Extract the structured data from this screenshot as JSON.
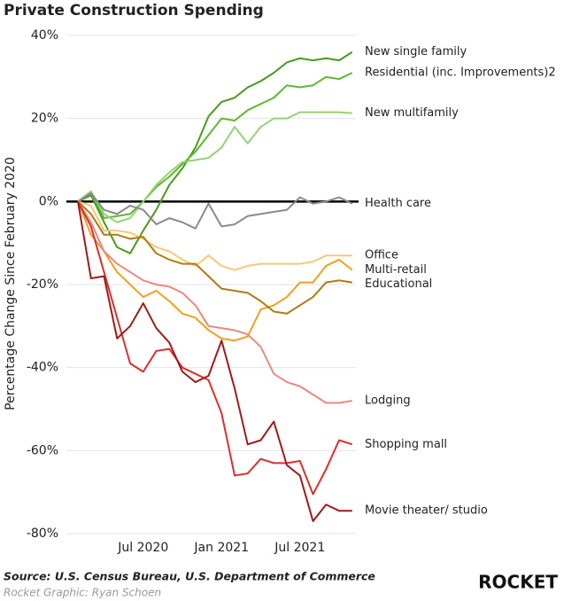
{
  "chart_data": {
    "type": "line",
    "title": "Private Construction Spending",
    "y_label": "Percentage Change Since February 2020",
    "source": "Source: U.S. Census Bureau, U.S. Department of Commerce",
    "credit": "Rocket Graphic: Ryan Schoen",
    "logo": "ROCKET",
    "categories": [
      null,
      null,
      null,
      null,
      null,
      "Jul 2020",
      null,
      null,
      null,
      null,
      null,
      "Jan 2021",
      null,
      null,
      null,
      null,
      null,
      "Jul 2021",
      null,
      null,
      null,
      null
    ],
    "ylim": [
      -80,
      40
    ],
    "yticks": [
      {
        "value": -80,
        "label": "-80%"
      },
      {
        "value": -60,
        "label": "-60%"
      },
      {
        "value": -40,
        "label": "-40%"
      },
      {
        "value": -20,
        "label": "-20%"
      },
      {
        "value": 0,
        "label": "0%"
      },
      {
        "value": 20,
        "label": "20%"
      },
      {
        "value": 40,
        "label": "40%"
      }
    ],
    "grid": true,
    "series": [
      {
        "name": "New single family",
        "color": "#4a9a1e",
        "values": [
          0,
          1.5,
          -5,
          -11,
          -12.5,
          -7,
          -2,
          4,
          8,
          13,
          20.5,
          24,
          25,
          27.5,
          29,
          31,
          33.5,
          34.5,
          34,
          34.5,
          34,
          36
        ]
      },
      {
        "name": "Residential (inc. Improvements)2",
        "color": "#5cb82e",
        "values": [
          0,
          2,
          -4,
          -3.5,
          -3,
          0,
          3.5,
          6,
          9,
          12,
          16,
          20,
          19.5,
          22,
          23.5,
          25,
          28,
          27.5,
          28,
          30,
          29.5,
          31
        ]
      },
      {
        "name": "New multifamily",
        "color": "#94d277",
        "values": [
          0,
          2.5,
          -3,
          -5,
          -4,
          0,
          4,
          7,
          9.5,
          10,
          10.5,
          13,
          18,
          14,
          18,
          20,
          20,
          21.5,
          21.5,
          21.5,
          21.5,
          21.3
        ]
      },
      {
        "name": "Health care",
        "color": "#8a8a8a",
        "values": [
          0,
          2,
          -2,
          -3,
          -1,
          -2,
          -5.5,
          -4,
          -5,
          -6.5,
          -0.5,
          -6,
          -5.5,
          -3.5,
          -3,
          -2.5,
          -2,
          1,
          -0.5,
          0,
          1,
          -0.5
        ]
      },
      {
        "name": "Office",
        "color": "#f5c97a",
        "values": [
          0,
          -1,
          -7,
          -7,
          -7.5,
          -9,
          -11,
          -12,
          -14,
          -15.5,
          -13,
          -15.5,
          -16.5,
          -15.5,
          -15,
          -15,
          -15,
          -15,
          -14.5,
          -13,
          -13,
          -13
        ]
      },
      {
        "name": "Multi-retail",
        "color": "#f0a020",
        "values": [
          0,
          -8,
          -12,
          -17,
          -20,
          -23,
          -21.5,
          -24,
          -27,
          -28,
          -31,
          -33,
          -33.5,
          -32.5,
          -26,
          -25,
          -23,
          -19.5,
          -19.5,
          -15.5,
          -14,
          -16.5
        ]
      },
      {
        "name": "Educational",
        "color": "#b07a10",
        "values": [
          0,
          -3,
          -8,
          -8,
          -9,
          -8.5,
          -12.5,
          -14,
          -15,
          -15,
          -18,
          -21,
          -21.5,
          -22,
          -24,
          -26.5,
          -27,
          -25,
          -23,
          -19.5,
          -19,
          -19.5
        ]
      },
      {
        "name": "Lodging",
        "color": "#e88a80",
        "values": [
          0,
          -5,
          -12,
          -15,
          -17,
          -19,
          -20,
          -20.5,
          -22,
          -25,
          -30,
          -30.5,
          -31,
          -32,
          -35,
          -41.5,
          -43.5,
          -44.5,
          -46.5,
          -48.5,
          -48.5,
          -48
        ]
      },
      {
        "name": "Shopping mall",
        "color": "#d83030",
        "values": [
          0,
          -6,
          -17,
          -28,
          -39,
          -41,
          -36,
          -35.5,
          -40,
          -41.5,
          -43,
          -51,
          -66,
          -65.5,
          -62,
          -63,
          -63,
          -62.5,
          -70.5,
          -64.5,
          -57.5,
          -58.5
        ]
      },
      {
        "name": "Movie theater/ studio",
        "color": "#a01a1a",
        "values": [
          0,
          -18.5,
          -18,
          -33,
          -30,
          -24.5,
          -30.5,
          -34,
          -41,
          -43.5,
          -42,
          -33.5,
          -45,
          -58.5,
          -57.5,
          -53,
          -63.5,
          -66,
          -77,
          -73,
          -74.5,
          -74.5
        ]
      }
    ]
  }
}
